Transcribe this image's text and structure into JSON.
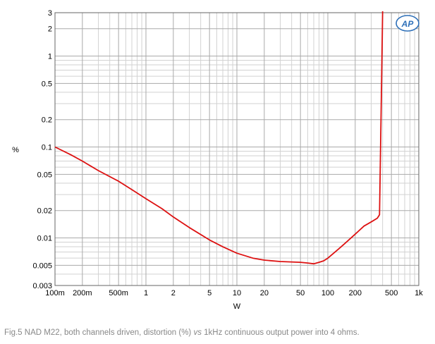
{
  "chart_data": {
    "type": "line",
    "xlabel": "W",
    "ylabel": "%",
    "x_scale": "log",
    "y_scale": "log",
    "xlim": [
      0.1,
      1000
    ],
    "ylim": [
      0.003,
      3
    ],
    "grid": true,
    "x_tick_labels": [
      {
        "value": 0.1,
        "label": "100m"
      },
      {
        "value": 0.2,
        "label": "200m"
      },
      {
        "value": 0.5,
        "label": "500m"
      },
      {
        "value": 1,
        "label": "1"
      },
      {
        "value": 2,
        "label": "2"
      },
      {
        "value": 5,
        "label": "5"
      },
      {
        "value": 10,
        "label": "10"
      },
      {
        "value": 20,
        "label": "20"
      },
      {
        "value": 50,
        "label": "50"
      },
      {
        "value": 100,
        "label": "100"
      },
      {
        "value": 200,
        "label": "200"
      },
      {
        "value": 500,
        "label": "500"
      },
      {
        "value": 1000,
        "label": "1k"
      }
    ],
    "y_tick_labels": [
      {
        "value": 0.003,
        "label": "0.003"
      },
      {
        "value": 0.005,
        "label": "0.005"
      },
      {
        "value": 0.01,
        "label": "0.01"
      },
      {
        "value": 0.02,
        "label": "0.02"
      },
      {
        "value": 0.05,
        "label": "0.05"
      },
      {
        "value": 0.1,
        "label": "0.1"
      },
      {
        "value": 0.2,
        "label": "0.2"
      },
      {
        "value": 0.5,
        "label": "0.5"
      },
      {
        "value": 1,
        "label": "1"
      },
      {
        "value": 2,
        "label": "2"
      },
      {
        "value": 3,
        "label": "3"
      }
    ],
    "series": [
      {
        "color": "#dd1111",
        "x": [
          0.1,
          0.15,
          0.2,
          0.3,
          0.5,
          0.7,
          1,
          1.5,
          2,
          3,
          5,
          7,
          10,
          15,
          20,
          30,
          50,
          60,
          70,
          80,
          90,
          100,
          130,
          150,
          200,
          250,
          300,
          350,
          370,
          390,
          400
        ],
        "y": [
          0.1,
          0.082,
          0.07,
          0.055,
          0.042,
          0.034,
          0.027,
          0.021,
          0.017,
          0.013,
          0.0095,
          0.008,
          0.0068,
          0.006,
          0.0057,
          0.0055,
          0.0054,
          0.0053,
          0.0052,
          0.0054,
          0.0056,
          0.006,
          0.0075,
          0.0085,
          0.011,
          0.0135,
          0.015,
          0.0165,
          0.018,
          0.5,
          3.2
        ]
      }
    ]
  },
  "logo": {
    "text": "AP"
  },
  "caption": {
    "part1": "Fig.5 NAD M22, both channels driven, distortion (%) ",
    "italic": "vs",
    "part2": " 1kHz continuous output power into 4 ohms."
  }
}
